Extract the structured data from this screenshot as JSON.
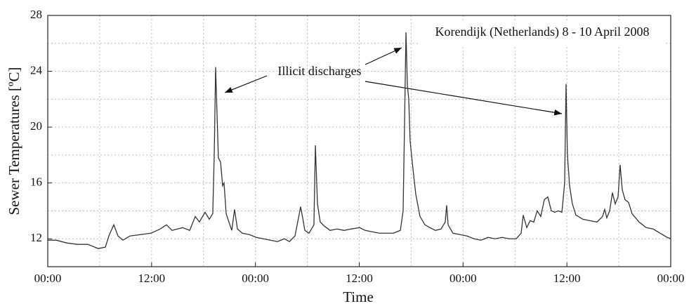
{
  "chart_data": {
    "type": "line",
    "title": "Korendijk (Netherlands)  8 - 10 April 2008",
    "x_label": "Time",
    "y_label": "Sewer Temperatures [ºC]",
    "annotation": "Illicit discharges",
    "xlim": [
      0,
      72
    ],
    "ylim": [
      10,
      28
    ],
    "xticks": [
      {
        "value": 0,
        "label": "00:00"
      },
      {
        "value": 12,
        "label": "12:00"
      },
      {
        "value": 24,
        "label": "00:00"
      },
      {
        "value": 36,
        "label": "12:00"
      },
      {
        "value": 48,
        "label": "00:00"
      },
      {
        "value": 60,
        "label": "12:00"
      },
      {
        "value": 72,
        "label": "00:00"
      }
    ],
    "yticks": [
      12,
      16,
      20,
      24,
      28
    ],
    "xgrid": [
      6,
      12,
      18,
      24,
      30,
      36,
      42,
      48,
      54,
      60,
      66
    ],
    "ygrid": [
      12,
      14,
      16,
      18,
      20,
      22,
      24,
      26
    ],
    "grid": true,
    "series": [
      {
        "name": "Sewer temperature",
        "color": "#333333",
        "x": [
          0,
          0.97,
          2.19,
          3.41,
          4.63,
          5.84,
          6.66,
          7.06,
          7.63,
          8.12,
          8.69,
          9.5,
          10.71,
          11.93,
          12.99,
          13.72,
          14.37,
          15.58,
          16.4,
          17.05,
          17.53,
          18.18,
          18.67,
          19.07,
          19.24,
          19.4,
          19.56,
          19.72,
          19.97,
          20.21,
          20.37,
          20.62,
          20.94,
          21.27,
          21.59,
          21.92,
          22.48,
          23.3,
          24.11,
          24.92,
          25.73,
          26.54,
          27.35,
          27.92,
          28.57,
          28.98,
          29.22,
          29.46,
          29.71,
          30.19,
          30.76,
          30.93,
          31.17,
          31.49,
          31.98,
          32.63,
          33.44,
          34.25,
          35.06,
          36.04,
          36.69,
          37.5,
          38.31,
          39.12,
          39.94,
          40.75,
          41.07,
          41.23,
          41.4,
          41.56,
          41.72,
          41.88,
          42.21,
          42.53,
          43.02,
          43.59,
          44.16,
          44.81,
          45.45,
          45.94,
          46.1,
          46.27,
          46.83,
          47.65,
          48.46,
          49.27,
          50.08,
          50.89,
          51.7,
          52.52,
          53.33,
          54.14,
          54.71,
          54.95,
          55.36,
          55.76,
          56.17,
          56.57,
          56.98,
          57.39,
          57.79,
          58.2,
          58.6,
          59.01,
          59.42,
          59.74,
          59.9,
          60.06,
          60.31,
          60.63,
          61.04,
          61.85,
          62.66,
          63.47,
          64.12,
          64.37,
          64.61,
          64.94,
          65.26,
          65.58,
          65.91,
          66.15,
          66.4,
          66.72,
          67.13,
          67.53,
          68.34,
          69.16,
          69.97,
          70.78,
          71.59,
          72
        ],
        "values": [
          11.9,
          11.9,
          11.7,
          11.6,
          11.6,
          11.3,
          11.4,
          12.2,
          13.0,
          12.2,
          11.9,
          12.2,
          12.3,
          12.4,
          12.7,
          13.0,
          12.6,
          12.8,
          12.6,
          13.6,
          13.2,
          13.9,
          13.4,
          13.8,
          18,
          24.3,
          21,
          17.8,
          17.5,
          15.8,
          16,
          13.8,
          13.2,
          12.6,
          14.1,
          12.7,
          12.4,
          12.3,
          12.1,
          12.0,
          11.9,
          11.8,
          12.0,
          11.8,
          12.2,
          13.5,
          14.3,
          13.5,
          12.6,
          12.4,
          13.0,
          18.7,
          14.5,
          13.2,
          12.9,
          12.6,
          12.7,
          12.6,
          12.7,
          12.8,
          12.6,
          12.5,
          12.4,
          12.4,
          12.4,
          12.6,
          14,
          20,
          26.8,
          23,
          22,
          19,
          17,
          15.2,
          13.6,
          13.0,
          12.8,
          12.6,
          12.7,
          13.2,
          14.4,
          13.0,
          12.4,
          12.3,
          12.2,
          12.0,
          11.9,
          12.1,
          12.0,
          12.1,
          12.0,
          12.0,
          12.4,
          13.7,
          12.8,
          13.3,
          13.2,
          14.0,
          13.6,
          14.8,
          15.0,
          14.0,
          13.9,
          14.0,
          13.9,
          16,
          23.1,
          18,
          15.8,
          14.5,
          13.7,
          13.4,
          13.3,
          13.2,
          13.6,
          14.1,
          13.5,
          14.0,
          15.3,
          14.5,
          15.0,
          17.3,
          15.5,
          14.8,
          14.6,
          13.8,
          13.2,
          12.8,
          12.7,
          12.4,
          12.1,
          12.0
        ]
      }
    ]
  }
}
